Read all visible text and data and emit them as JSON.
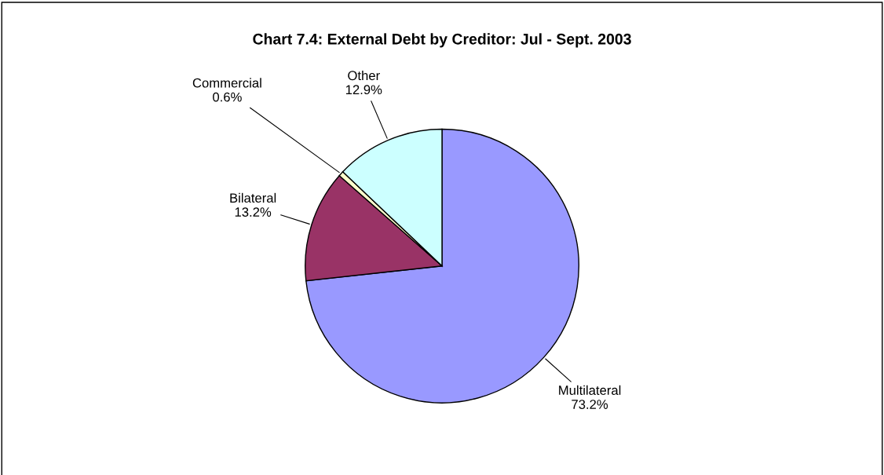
{
  "chart_data": {
    "type": "pie",
    "title": "Chart 7.4: External Debt by Creditor: Jul - Sept. 2003",
    "categories": [
      "Multilateral",
      "Bilateral",
      "Commercial",
      "Other"
    ],
    "values": [
      73.2,
      13.2,
      0.6,
      12.9
    ],
    "value_labels": [
      "73.2%",
      "13.2%",
      "0.6%",
      "12.9%"
    ],
    "colors": [
      "#9999ff",
      "#993366",
      "#ffffcc",
      "#ccffff"
    ],
    "legend": false
  }
}
